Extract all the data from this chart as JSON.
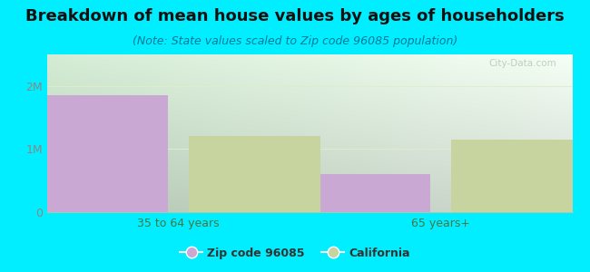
{
  "title": "Breakdown of mean house values by ages of householders",
  "subtitle": "(Note: State values scaled to Zip code 96085 population)",
  "categories": [
    "35 to 64 years",
    "65 years+"
  ],
  "zip_values": [
    1850000,
    600000
  ],
  "ca_values": [
    1200000,
    1150000
  ],
  "zip_color": "#c9a8d4",
  "ca_color": "#c8d4a0",
  "ylim": [
    0,
    2500000
  ],
  "yticks": [
    0,
    1000000,
    2000000
  ],
  "ytick_labels": [
    "0",
    "1M",
    "2M"
  ],
  "legend_zip": "Zip code 96085",
  "legend_ca": "California",
  "bg_outer": "#00eeff",
  "title_color": "#111111",
  "subtitle_color": "#007799",
  "title_fontsize": 13,
  "subtitle_fontsize": 9,
  "watermark": "City-Data.com",
  "bar_width": 0.25,
  "bar_gap": 0.04,
  "group_positions": [
    0.25,
    0.75
  ],
  "xlim": [
    0,
    1
  ]
}
